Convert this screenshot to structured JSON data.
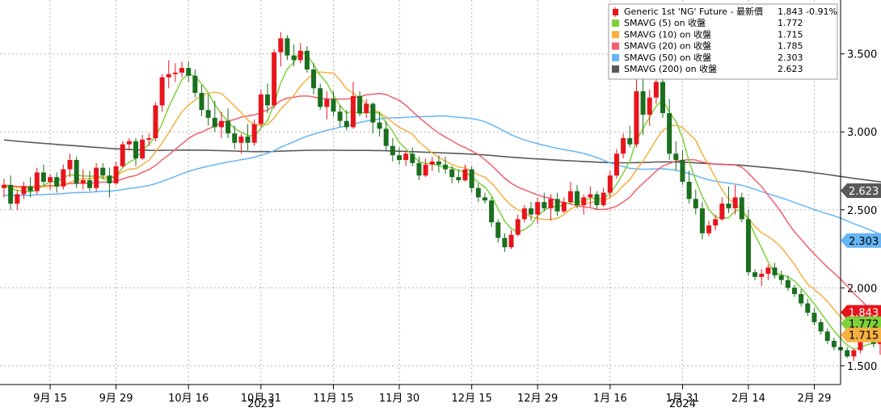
{
  "chart_data": {
    "type": "candlestick",
    "colors": {
      "up_candle": "#e8141c",
      "down_candle": "#1a6f1f",
      "sma5": "#7ed13a",
      "sma10": "#f6b042",
      "sma20": "#f2606c",
      "sma50": "#66b5f5",
      "sma200": "#5a5a5a",
      "grid": "#b5b5b5"
    },
    "y_axis": {
      "min": 1.38,
      "max": 3.83,
      "ticks": [
        {
          "value": 1.5,
          "label": "1.500"
        },
        {
          "value": 2.0,
          "label": "2.000"
        },
        {
          "value": 2.5,
          "label": "2.500"
        },
        {
          "value": 3.0,
          "label": "3.000"
        },
        {
          "value": 3.5,
          "label": "3.500"
        }
      ]
    },
    "x_axis": {
      "ticks": [
        {
          "i": 7,
          "label": "9月 15"
        },
        {
          "i": 17,
          "label": "9月 29"
        },
        {
          "i": 28,
          "label": "10月 16"
        },
        {
          "i": 39,
          "label": "10月 31"
        },
        {
          "i": 50,
          "label": "11月 15"
        },
        {
          "i": 60,
          "label": "11月 30"
        },
        {
          "i": 71,
          "label": "12月 15"
        },
        {
          "i": 81,
          "label": "12月 29"
        },
        {
          "i": 92,
          "label": "1月 16"
        },
        {
          "i": 103,
          "label": "1月 31"
        },
        {
          "i": 113,
          "label": "2月 14"
        },
        {
          "i": 123,
          "label": "2月 29"
        }
      ],
      "years": [
        {
          "i": 39,
          "label": "2023"
        },
        {
          "i": 103,
          "label": "2024"
        }
      ]
    },
    "legend": [
      {
        "key": "price",
        "name": "Generic 1st 'NG' Future - 最新價",
        "value": "1.843",
        "change": "-0.91%"
      },
      {
        "key": "sma5",
        "name": "SMAVG (5)  on 收盤",
        "value": "1.772"
      },
      {
        "key": "sma10",
        "name": "SMAVG (10)  on 收盤",
        "value": "1.715"
      },
      {
        "key": "sma20",
        "name": "SMAVG (20)  on 收盤",
        "value": "1.785"
      },
      {
        "key": "sma50",
        "name": "SMAVG (50)  on 收盤",
        "value": "2.303"
      },
      {
        "key": "sma200",
        "name": "SMAVG (200)  on 收盤",
        "value": "2.623"
      }
    ],
    "last_value_labels": [
      {
        "key": "sma200",
        "text": "2.623",
        "value": 2.623
      },
      {
        "key": "sma50",
        "text": "2.303",
        "value": 2.303
      },
      {
        "key": "price",
        "text": "1.843",
        "value": 1.843
      },
      {
        "key": "sma5",
        "text": "1.772",
        "value": 1.772
      },
      {
        "key": "sma10",
        "text": "1.715",
        "value": 1.715
      }
    ],
    "candles": [
      [
        2.64,
        2.7,
        2.58,
        2.66
      ],
      [
        2.66,
        2.72,
        2.5,
        2.54
      ],
      [
        2.54,
        2.63,
        2.5,
        2.6
      ],
      [
        2.6,
        2.68,
        2.57,
        2.65
      ],
      [
        2.65,
        2.71,
        2.58,
        2.62
      ],
      [
        2.62,
        2.77,
        2.6,
        2.74
      ],
      [
        2.74,
        2.79,
        2.66,
        2.68
      ],
      [
        2.68,
        2.73,
        2.63,
        2.71
      ],
      [
        2.71,
        2.74,
        2.61,
        2.65
      ],
      [
        2.65,
        2.79,
        2.63,
        2.76
      ],
      [
        2.76,
        2.86,
        2.71,
        2.82
      ],
      [
        2.82,
        2.84,
        2.64,
        2.67
      ],
      [
        2.67,
        2.76,
        2.63,
        2.69
      ],
      [
        2.69,
        2.75,
        2.62,
        2.64
      ],
      [
        2.64,
        2.8,
        2.62,
        2.77
      ],
      [
        2.77,
        2.8,
        2.7,
        2.72
      ],
      [
        2.72,
        2.77,
        2.58,
        2.67
      ],
      [
        2.67,
        2.81,
        2.66,
        2.78
      ],
      [
        2.78,
        2.94,
        2.77,
        2.92
      ],
      [
        2.92,
        2.96,
        2.88,
        2.94
      ],
      [
        2.94,
        2.96,
        2.78,
        2.83
      ],
      [
        2.83,
        2.98,
        2.82,
        2.95
      ],
      [
        2.95,
        2.99,
        2.91,
        2.96
      ],
      [
        2.96,
        3.19,
        2.94,
        3.17
      ],
      [
        3.17,
        3.37,
        3.13,
        3.35
      ],
      [
        3.35,
        3.46,
        3.28,
        3.37
      ],
      [
        3.37,
        3.44,
        3.32,
        3.38
      ],
      [
        3.38,
        3.45,
        3.35,
        3.41
      ],
      [
        3.41,
        3.45,
        3.32,
        3.36
      ],
      [
        3.36,
        3.4,
        3.22,
        3.25
      ],
      [
        3.25,
        3.3,
        3.1,
        3.14
      ],
      [
        3.14,
        3.24,
        3.04,
        3.09
      ],
      [
        3.09,
        3.2,
        3.0,
        3.03
      ],
      [
        3.03,
        3.13,
        2.96,
        3.07
      ],
      [
        3.07,
        3.15,
        2.96,
        2.99
      ],
      [
        2.99,
        3.04,
        2.89,
        2.93
      ],
      [
        2.93,
        2.99,
        2.86,
        2.97
      ],
      [
        2.97,
        3.05,
        2.88,
        2.93
      ],
      [
        2.93,
        3.08,
        2.91,
        3.05
      ],
      [
        3.05,
        3.27,
        3.03,
        3.24
      ],
      [
        3.24,
        3.31,
        3.12,
        3.17
      ],
      [
        3.17,
        3.53,
        3.15,
        3.51
      ],
      [
        3.51,
        3.64,
        3.42,
        3.6
      ],
      [
        3.6,
        3.62,
        3.46,
        3.49
      ],
      [
        3.49,
        3.56,
        3.42,
        3.46
      ],
      [
        3.46,
        3.57,
        3.44,
        3.52
      ],
      [
        3.52,
        3.55,
        3.38,
        3.4
      ],
      [
        3.4,
        3.44,
        3.24,
        3.28
      ],
      [
        3.28,
        3.31,
        3.14,
        3.16
      ],
      [
        3.16,
        3.26,
        3.08,
        3.21
      ],
      [
        3.21,
        3.26,
        3.1,
        3.13
      ],
      [
        3.13,
        3.17,
        3.03,
        3.07
      ],
      [
        3.07,
        3.14,
        3.01,
        3.03
      ],
      [
        3.03,
        3.32,
        3.02,
        3.23
      ],
      [
        3.23,
        3.26,
        3.1,
        3.12
      ],
      [
        3.12,
        3.21,
        3.09,
        3.18
      ],
      [
        3.18,
        3.19,
        2.99,
        3.06
      ],
      [
        3.06,
        3.13,
        2.97,
        3.02
      ],
      [
        3.02,
        3.07,
        2.88,
        2.91
      ],
      [
        2.91,
        2.96,
        2.81,
        2.85
      ],
      [
        2.85,
        2.9,
        2.79,
        2.82
      ],
      [
        2.82,
        2.88,
        2.78,
        2.86
      ],
      [
        2.86,
        2.9,
        2.78,
        2.8
      ],
      [
        2.8,
        2.84,
        2.69,
        2.72
      ],
      [
        2.72,
        2.83,
        2.71,
        2.79
      ],
      [
        2.79,
        2.84,
        2.75,
        2.81
      ],
      [
        2.81,
        2.85,
        2.74,
        2.79
      ],
      [
        2.79,
        2.84,
        2.73,
        2.76
      ],
      [
        2.76,
        2.78,
        2.67,
        2.71
      ],
      [
        2.71,
        2.76,
        2.67,
        2.69
      ],
      [
        2.69,
        2.79,
        2.68,
        2.76
      ],
      [
        2.76,
        2.78,
        2.61,
        2.64
      ],
      [
        2.64,
        2.67,
        2.55,
        2.58
      ],
      [
        2.58,
        2.61,
        2.54,
        2.56
      ],
      [
        2.56,
        2.58,
        2.39,
        2.42
      ],
      [
        2.42,
        2.44,
        2.29,
        2.32
      ],
      [
        2.32,
        2.35,
        2.23,
        2.26
      ],
      [
        2.26,
        2.37,
        2.25,
        2.34
      ],
      [
        2.34,
        2.47,
        2.33,
        2.44
      ],
      [
        2.44,
        2.53,
        2.42,
        2.51
      ],
      [
        2.51,
        2.55,
        2.43,
        2.47
      ],
      [
        2.47,
        2.58,
        2.41,
        2.55
      ],
      [
        2.55,
        2.61,
        2.49,
        2.51
      ],
      [
        2.51,
        2.6,
        2.43,
        2.57
      ],
      [
        2.57,
        2.61,
        2.46,
        2.49
      ],
      [
        2.49,
        2.58,
        2.48,
        2.55
      ],
      [
        2.55,
        2.68,
        2.54,
        2.62
      ],
      [
        2.62,
        2.66,
        2.51,
        2.53
      ],
      [
        2.53,
        2.6,
        2.47,
        2.58
      ],
      [
        2.58,
        2.65,
        2.52,
        2.6
      ],
      [
        2.6,
        2.62,
        2.5,
        2.53
      ],
      [
        2.53,
        2.64,
        2.52,
        2.61
      ],
      [
        2.61,
        2.75,
        2.58,
        2.72
      ],
      [
        2.72,
        2.89,
        2.7,
        2.86
      ],
      [
        2.86,
        2.99,
        2.83,
        2.96
      ],
      [
        2.96,
        3.04,
        2.9,
        2.92
      ],
      [
        2.92,
        3.39,
        2.9,
        3.26
      ],
      [
        3.26,
        3.34,
        2.98,
        3.11
      ],
      [
        3.11,
        3.27,
        3.04,
        3.22
      ],
      [
        3.22,
        3.36,
        3.18,
        3.32
      ],
      [
        3.32,
        3.37,
        3.09,
        3.12
      ],
      [
        3.12,
        3.21,
        2.82,
        2.86
      ],
      [
        2.86,
        2.94,
        2.75,
        2.82
      ],
      [
        2.82,
        2.88,
        2.66,
        2.68
      ],
      [
        2.68,
        2.75,
        2.54,
        2.57
      ],
      [
        2.57,
        2.63,
        2.47,
        2.51
      ],
      [
        2.51,
        2.55,
        2.31,
        2.35
      ],
      [
        2.35,
        2.43,
        2.33,
        2.4
      ],
      [
        2.4,
        2.47,
        2.37,
        2.44
      ],
      [
        2.44,
        2.58,
        2.43,
        2.54
      ],
      [
        2.54,
        2.65,
        2.48,
        2.51
      ],
      [
        2.51,
        2.66,
        2.47,
        2.58
      ],
      [
        2.58,
        2.61,
        2.42,
        2.44
      ],
      [
        2.44,
        2.5,
        2.08,
        2.1
      ],
      [
        2.1,
        2.12,
        2.05,
        2.07
      ],
      [
        2.07,
        2.12,
        2.01,
        2.09
      ],
      [
        2.09,
        2.15,
        2.05,
        2.13
      ],
      [
        2.13,
        2.16,
        2.06,
        2.08
      ],
      [
        2.08,
        2.11,
        2.02,
        2.05
      ],
      [
        2.05,
        2.08,
        1.98,
        2.0
      ],
      [
        2.0,
        2.02,
        1.94,
        1.96
      ],
      [
        1.96,
        1.99,
        1.88,
        1.9
      ],
      [
        1.9,
        1.93,
        1.82,
        1.84
      ],
      [
        1.84,
        1.87,
        1.76,
        1.78
      ],
      [
        1.78,
        1.8,
        1.7,
        1.72
      ],
      [
        1.72,
        1.74,
        1.64,
        1.66
      ],
      [
        1.66,
        1.68,
        1.6,
        1.62
      ],
      [
        1.62,
        1.64,
        1.58,
        1.6
      ],
      [
        1.6,
        1.62,
        1.55,
        1.56
      ],
      [
        1.56,
        1.61,
        1.53,
        1.6
      ],
      [
        1.6,
        1.72,
        1.58,
        1.7
      ],
      [
        1.7,
        1.74,
        1.65,
        1.72
      ],
      [
        1.72,
        1.76,
        1.62,
        1.64
      ],
      [
        1.64,
        1.69,
        1.57,
        1.66
      ],
      [
        1.66,
        1.7,
        1.51,
        1.67
      ],
      [
        1.67,
        1.74,
        1.64,
        1.72
      ],
      [
        1.72,
        1.86,
        1.7,
        1.84
      ],
      [
        1.84,
        1.89,
        1.79,
        1.86
      ],
      [
        1.86,
        1.87,
        1.81,
        1.843
      ]
    ]
  }
}
